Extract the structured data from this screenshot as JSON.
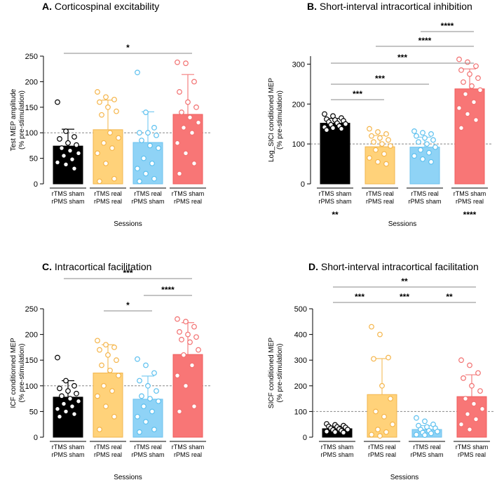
{
  "colors": {
    "black": "#000000",
    "yellow": "#ffd27a",
    "yellow_edge": "#f2b64e",
    "blue": "#8fd3f6",
    "blue_edge": "#6cc2ee",
    "red": "#f87676",
    "red_edge": "#ef5c5c",
    "sig_line": "#888888",
    "ref_line": "#888888"
  },
  "chart_data": [
    {
      "id": "A",
      "type": "bar",
      "panel_letter": "A.",
      "title": "Corticospinal excitability",
      "ylabel": [
        "Test MEP amplitude",
        "(% pre-stimulation)"
      ],
      "xlabel": "Sessions",
      "ylim": [
        0,
        250
      ],
      "yticks": [
        "0",
        "50",
        "100",
        "150",
        "200",
        "250"
      ],
      "ytick_values": [
        0,
        50,
        100,
        150,
        200,
        250
      ],
      "reference_line": 100,
      "categories": [
        [
          "rTMS sham",
          "rPMS sham"
        ],
        [
          "rTMS real",
          "rPMS real"
        ],
        [
          "rTMS real",
          "rPMS sham"
        ],
        [
          "rTMS sham",
          "rPMS real"
        ]
      ],
      "values": [
        74,
        106,
        81,
        136
      ],
      "sd": [
        33,
        58,
        60,
        78
      ],
      "points": [
        [
          160,
          103,
          92,
          88,
          80,
          76,
          70,
          65,
          60,
          55,
          48,
          42,
          38,
          30
        ],
        [
          180,
          170,
          165,
          160,
          150,
          142,
          135,
          100,
          90,
          80,
          70,
          60,
          40,
          10,
          5
        ],
        [
          218,
          140,
          110,
          100,
          100,
          95,
          85,
          75,
          70,
          50,
          40,
          30,
          20,
          10,
          5
        ],
        [
          238,
          236,
          200,
          180,
          160,
          150,
          140,
          130,
          120,
          110,
          100,
          80,
          60,
          40,
          20
        ]
      ],
      "significance": [
        {
          "from": 0,
          "to": 3,
          "label": "*"
        }
      ],
      "below_labels": [
        "",
        "",
        "",
        ""
      ]
    },
    {
      "id": "B",
      "type": "bar",
      "panel_letter": "B.",
      "title": "Short-interval intracortical inhibition",
      "ylabel": [
        "Log_SICI conditioned MEP",
        "(% pre-stimulation)"
      ],
      "xlabel": "Sessions",
      "ylim": [
        0,
        320
      ],
      "yticks": [
        "0",
        "100",
        "200",
        "300"
      ],
      "ytick_values": [
        0,
        100,
        200,
        300
      ],
      "reference_line": 100,
      "categories": [
        [
          "rTMS sham",
          "rPMS sham"
        ],
        [
          "rTMS real",
          "rPMS real"
        ],
        [
          "rTMS real",
          "rPMS sham"
        ],
        [
          "rTMS sham",
          "rPMS real"
        ]
      ],
      "values": [
        152,
        93,
        92,
        238
      ],
      "sd": [
        12,
        28,
        25,
        50
      ],
      "points": [
        [
          175,
          170,
          165,
          162,
          160,
          158,
          155,
          152,
          150,
          148,
          145,
          142,
          140,
          138,
          135
        ],
        [
          138,
          130,
          125,
          120,
          115,
          110,
          105,
          100,
          95,
          85,
          75,
          65,
          55,
          50
        ],
        [
          132,
          128,
          125,
          120,
          115,
          110,
          105,
          100,
          92,
          85,
          78,
          70,
          62,
          55
        ],
        [
          312,
          305,
          295,
          285,
          275,
          265,
          255,
          245,
          235,
          225,
          205,
          190,
          175,
          160,
          140
        ]
      ],
      "significance": [
        {
          "from": 0,
          "to": 1,
          "label": "***"
        },
        {
          "from": 0,
          "to": 2,
          "label": "***"
        },
        {
          "from": 0,
          "to": 3,
          "label": "***"
        },
        {
          "from": 1,
          "to": 3,
          "label": "****"
        },
        {
          "from": 2,
          "to": 3,
          "label": "****"
        }
      ],
      "below_labels": [
        "**",
        "",
        "",
        "****"
      ]
    },
    {
      "id": "C",
      "type": "bar",
      "panel_letter": "C.",
      "title": "Intracortical facilitation",
      "ylabel": [
        "ICF conditionned MEP",
        "(% pre-stimulation)"
      ],
      "xlabel": "Sessions",
      "ylim": [
        0,
        250
      ],
      "yticks": [
        "0",
        "50",
        "100",
        "150",
        "200",
        "250"
      ],
      "ytick_values": [
        0,
        50,
        100,
        150,
        200,
        250
      ],
      "reference_line": 100,
      "categories": [
        [
          "rTMS sham",
          "rPMS sham"
        ],
        [
          "rTMS real",
          "rPMS real"
        ],
        [
          "rTMS real",
          "rPMS sham"
        ],
        [
          "rTMS sham",
          "rPMS real"
        ]
      ],
      "values": [
        78,
        125,
        74,
        161
      ],
      "sd": [
        32,
        55,
        45,
        62
      ],
      "points": [
        [
          155,
          110,
          100,
          95,
          90,
          85,
          80,
          75,
          70,
          65,
          60,
          55,
          50,
          45,
          40
        ],
        [
          188,
          180,
          175,
          170,
          160,
          150,
          140,
          130,
          120,
          100,
          90,
          80,
          60,
          40,
          15
        ],
        [
          152,
          140,
          125,
          110,
          100,
          90,
          80,
          75,
          70,
          60,
          50,
          40,
          30,
          15,
          10
        ],
        [
          230,
          225,
          215,
          205,
          200,
          195,
          190,
          185,
          170,
          160,
          140,
          120,
          100,
          60,
          50
        ]
      ],
      "significance": [
        {
          "from": 1,
          "to": 2,
          "label": "*"
        },
        {
          "from": 2,
          "to": 3,
          "label": "****"
        },
        {
          "from": 0,
          "to": 3,
          "label": "***"
        }
      ],
      "below_labels": [
        "",
        "",
        "",
        ""
      ]
    },
    {
      "id": "D",
      "type": "bar",
      "panel_letter": "D.",
      "title": "Short-interval intracortical facilitation",
      "ylabel": [
        "SICF conditioned MEP",
        "(% pre-stimulation)"
      ],
      "xlabel": "Sessions",
      "ylim": [
        0,
        500
      ],
      "yticks": [
        "0",
        "100",
        "200",
        "300",
        "400",
        "500"
      ],
      "ytick_values": [
        0,
        100,
        200,
        300,
        400,
        500
      ],
      "reference_line": 100,
      "categories": [
        [
          "rTMS sham",
          "rPMS sham"
        ],
        [
          "rTMS real",
          "rPMS real"
        ],
        [
          "rTMS real",
          "rPMS sham"
        ],
        [
          "rTMS sham",
          "rPMS real"
        ]
      ],
      "values": [
        33,
        166,
        30,
        158
      ],
      "sd": [
        10,
        140,
        15,
        85
      ],
      "points": [
        [
          52,
          48,
          45,
          42,
          40,
          38,
          35,
          32,
          30,
          28,
          25,
          22,
          20,
          18
        ],
        [
          430,
          400,
          310,
          305,
          200,
          150,
          100,
          80,
          50,
          30,
          20,
          10,
          5
        ],
        [
          75,
          62,
          50,
          45,
          40,
          35,
          30,
          25,
          22,
          18,
          15,
          10,
          8
        ],
        [
          300,
          280,
          250,
          230,
          200,
          180,
          150,
          130,
          110,
          90,
          70,
          50,
          30
        ]
      ],
      "significance": [
        {
          "from": 0,
          "to": 1,
          "label": "***"
        },
        {
          "from": 1,
          "to": 2,
          "label": "***"
        },
        {
          "from": 2,
          "to": 3,
          "label": "**"
        },
        {
          "from": 0,
          "to": 3,
          "label": "**"
        }
      ],
      "below_labels": [
        "",
        "",
        "",
        ""
      ]
    }
  ]
}
